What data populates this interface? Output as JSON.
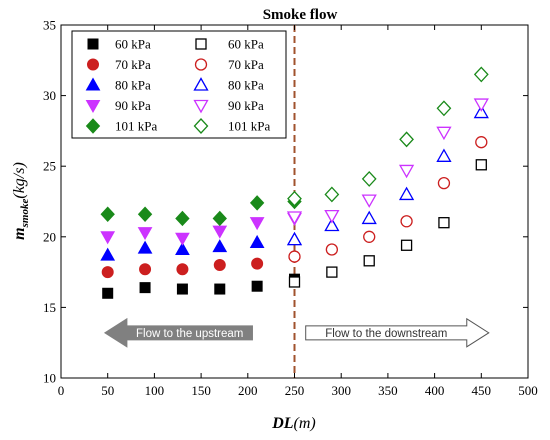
{
  "chart_data": {
    "type": "scatter",
    "title": "Smoke flow",
    "xlabel": "DL(m)",
    "ylabel": "m_smoke(kg/s)",
    "xlim": [
      0,
      500
    ],
    "ylim": [
      10,
      35
    ],
    "x_ticks": [
      "0",
      "50",
      "100",
      "150",
      "200",
      "250",
      "300",
      "350",
      "400",
      "450",
      "500"
    ],
    "y_ticks": [
      "10",
      "15",
      "20",
      "25",
      "30",
      "35"
    ],
    "grid": false,
    "legend_position": "top-left",
    "reference_line": {
      "x": 250,
      "color": "#a0522d",
      "style": "dashed"
    },
    "annotations": [
      {
        "text": "Flow to the upstream",
        "direction": "left",
        "color": "#808080"
      },
      {
        "text": "Flow to the downstream",
        "direction": "right",
        "color": "#ffffff"
      }
    ],
    "series": [
      {
        "name": "60 kPa",
        "marker": "square",
        "filled": true,
        "color": "#000000",
        "x": [
          50,
          90,
          130,
          170,
          210,
          250
        ],
        "y": [
          16.0,
          16.4,
          16.3,
          16.3,
          16.5,
          17.0
        ]
      },
      {
        "name": "70 kPa",
        "marker": "circle",
        "filled": true,
        "color": "#cc1f1f",
        "x": [
          50,
          90,
          130,
          170,
          210,
          250
        ],
        "y": [
          17.5,
          17.7,
          17.7,
          18.0,
          18.1,
          18.6
        ]
      },
      {
        "name": "80 kPa",
        "marker": "triangle-up",
        "filled": true,
        "color": "#0000ff",
        "x": [
          50,
          90,
          130,
          170,
          210,
          250
        ],
        "y": [
          18.7,
          19.2,
          19.1,
          19.3,
          19.6,
          19.8
        ]
      },
      {
        "name": "90 kPa",
        "marker": "triangle-down",
        "filled": true,
        "color": "#cc33ff",
        "x": [
          50,
          90,
          130,
          170,
          210,
          250
        ],
        "y": [
          20.0,
          20.3,
          19.9,
          20.4,
          21.0,
          21.3
        ]
      },
      {
        "name": "101 kPa",
        "marker": "diamond",
        "filled": true,
        "color": "#1a8a1a",
        "x": [
          50,
          90,
          130,
          170,
          210,
          250
        ],
        "y": [
          21.6,
          21.6,
          21.3,
          21.3,
          22.4,
          22.5
        ]
      },
      {
        "name": "60 kPa",
        "marker": "square",
        "filled": false,
        "color": "#000000",
        "x": [
          250,
          290,
          330,
          370,
          410,
          450
        ],
        "y": [
          16.8,
          17.5,
          18.3,
          19.4,
          21.0,
          25.1
        ]
      },
      {
        "name": "70 kPa",
        "marker": "circle",
        "filled": false,
        "color": "#cc1f1f",
        "x": [
          250,
          290,
          330,
          370,
          410,
          450
        ],
        "y": [
          18.6,
          19.1,
          20.0,
          21.1,
          23.8,
          26.7
        ]
      },
      {
        "name": "80 kPa",
        "marker": "triangle-up",
        "filled": false,
        "color": "#0000ff",
        "x": [
          250,
          290,
          330,
          370,
          410,
          450
        ],
        "y": [
          19.8,
          20.8,
          21.3,
          23.0,
          25.7,
          28.8
        ]
      },
      {
        "name": "90 kPa",
        "marker": "triangle-down",
        "filled": false,
        "color": "#cc33ff",
        "x": [
          250,
          290,
          330,
          370,
          410,
          450
        ],
        "y": [
          21.4,
          21.5,
          22.6,
          24.7,
          27.4,
          29.4
        ]
      },
      {
        "name": "101 kPa",
        "marker": "diamond",
        "filled": false,
        "color": "#1a8a1a",
        "x": [
          250,
          290,
          330,
          370,
          410,
          450
        ],
        "y": [
          22.7,
          23.0,
          24.1,
          26.9,
          29.1,
          31.5
        ]
      }
    ]
  }
}
